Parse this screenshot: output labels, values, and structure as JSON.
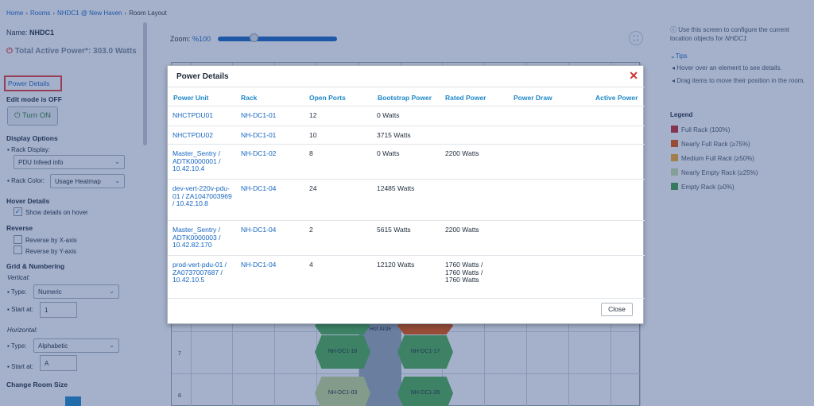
{
  "breadcrumb": [
    "Home",
    "Rooms",
    "NHDC1 @ New Haven",
    "Room Layout"
  ],
  "left": {
    "name_label": "Name:",
    "name_value": "NHDC1",
    "power_text": "Total Active Power*: 303.0 Watts",
    "power_details": "Power Details",
    "edit_mode": "Edit mode is OFF",
    "turn_on": "Turn ON",
    "display_options": "Display Options",
    "rack_display_label": "Rack Display:",
    "rack_display_value": "PDU Infeed info",
    "rack_color_label": "Rack Color:",
    "rack_color_value": "Usage Heatmap",
    "hover_details": "Hover Details",
    "show_details": "Show details on hover",
    "reverse": "Reverse",
    "reverse_x": "Reverse by X-axis",
    "reverse_y": "Reverse by Y-axis",
    "grid_numbering": "Grid & Numbering",
    "vertical": "Vertical:",
    "type_label": "Type:",
    "vertical_type": "Numeric",
    "start_at": "Start at:",
    "vertical_start": "1",
    "horizontal": "Horizontal:",
    "horizontal_type": "Alphabetic",
    "horizontal_start": "A",
    "change_room_size": "Change Room Size"
  },
  "middle": {
    "zoom_label": "Zoom:",
    "zoom_value": "%100",
    "zoom_level": 1.0,
    "row_labels": [
      "7",
      "8"
    ],
    "racks": [
      "NH-DC1-18",
      "NH-DC1-17",
      "NH-DC1-03",
      "NH-DC1-26"
    ],
    "hot_aisle": "Hot Aisle"
  },
  "right": {
    "intro": "Use this screen to configure the current location objects for",
    "intro_location": "NHDC1",
    "tips": "Tips",
    "tip1": "Hover over an element to see details.",
    "tip2": "Drag items to move their position in the room.",
    "legend_title": "Legend",
    "legend": [
      {
        "label": "Full Rack (100%)",
        "color": "#c62828"
      },
      {
        "label": "Nearly Full Rack (≥75%)",
        "color": "#e65100"
      },
      {
        "label": "Medium Full Rack (≥50%)",
        "color": "#f9a825"
      },
      {
        "label": "Nearly Empty Rack (≥25%)",
        "color": "#c5e1a5"
      },
      {
        "label": "Empty Rack (≥0%)",
        "color": "#43a047"
      }
    ]
  },
  "modal": {
    "title": "Power Details",
    "headers": [
      "Power Unit",
      "Rack",
      "Open Ports",
      "Bootstrap Power",
      "Rated Power",
      "Power Draw",
      "Active Power"
    ],
    "rows": [
      {
        "unit": "NHCTPDU01",
        "rack": "NH-DC1-01",
        "ports": "12",
        "bootstrap": "0 Watts",
        "rated": ""
      },
      {
        "unit": "NHCTPDU02",
        "rack": "NH-DC1-01",
        "ports": "10",
        "bootstrap": "3715 Watts",
        "rated": ""
      },
      {
        "unit": "Master_Sentry / ADTK0000001 / 10.42.10.4",
        "rack": "NH-DC1-02",
        "ports": "8",
        "bootstrap": "0 Watts",
        "rated": "2200 Watts"
      },
      {
        "unit": "dev-vert-220v-pdu-01 / ZA1047003969 / 10.42.10.8",
        "rack": "NH-DC1-04",
        "ports": "24",
        "bootstrap": "12485 Watts",
        "rated": ""
      },
      {
        "unit": "Master_Sentry / ADTK0000003 / 10.42.82.170",
        "rack": "NH-DC1-04",
        "ports": "2",
        "bootstrap": "5615 Watts",
        "rated": "2200 Watts"
      },
      {
        "unit": "prod-vert-pdu-01 / ZA0737007687 / 10.42.10.5",
        "rack": "NH-DC1-04",
        "ports": "4",
        "bootstrap": "12120 Watts",
        "rated": "1760 Watts / 1760 Watts / 1760 Watts"
      }
    ],
    "close": "Close"
  },
  "colors": {
    "accent": "#1565c0",
    "header": "#1e88c8",
    "danger": "#d32f2f",
    "rack_green": "#4caf50",
    "rack_light": "#c5d98f",
    "rack_orange": "#e65100"
  }
}
